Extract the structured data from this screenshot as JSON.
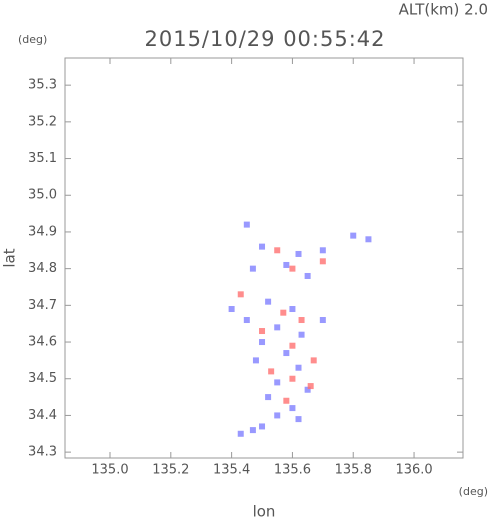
{
  "chart_data": {
    "type": "scatter",
    "title": "2015/10/29 00:55:42",
    "annotation": "ALT(km) 2.0",
    "y_unit": "(deg)",
    "x_unit": "(deg)",
    "x_label": "lon",
    "y_label": "lat",
    "xlim": [
      134.852,
      136.161
    ],
    "ylim": [
      34.284,
      35.374
    ],
    "xticks": [
      {
        "value": 135,
        "label": "135.0"
      },
      135.2,
      135.4,
      135.6,
      135.8,
      {
        "value": 136,
        "label": "136.0"
      }
    ],
    "yticks": [
      34.3,
      34.4,
      34.5,
      34.6,
      34.7,
      34.8,
      34.9,
      {
        "value": 35,
        "label": "35.0"
      },
      35.1,
      35.2,
      35.3
    ],
    "series": [
      {
        "color": "#7f7fff",
        "x": [
          135.45,
          135.5,
          135.62,
          135.7,
          135.8,
          135.58,
          135.65,
          135.47,
          135.52,
          135.6,
          135.45,
          135.55,
          135.63,
          135.5,
          135.58,
          135.48,
          135.62,
          135.55,
          135.65,
          135.52,
          135.6,
          135.55,
          135.62,
          135.5,
          135.43,
          135.47,
          135.4,
          135.7,
          135.85
        ],
        "y": [
          34.92,
          34.86,
          34.84,
          34.85,
          34.89,
          34.81,
          34.78,
          34.8,
          34.71,
          34.69,
          34.66,
          34.64,
          34.62,
          34.6,
          34.57,
          34.55,
          34.53,
          34.49,
          34.47,
          34.45,
          34.42,
          34.4,
          34.39,
          34.37,
          34.35,
          34.36,
          34.69,
          34.66,
          34.88
        ]
      },
      {
        "color": "#ff7070",
        "x": [
          135.55,
          135.6,
          135.7,
          135.57,
          135.63,
          135.5,
          135.6,
          135.67,
          135.53,
          135.66,
          135.6,
          135.58,
          135.43
        ],
        "y": [
          34.85,
          34.8,
          34.82,
          34.68,
          34.66,
          34.63,
          34.59,
          34.55,
          34.52,
          34.48,
          34.5,
          34.44,
          34.73
        ]
      }
    ]
  }
}
